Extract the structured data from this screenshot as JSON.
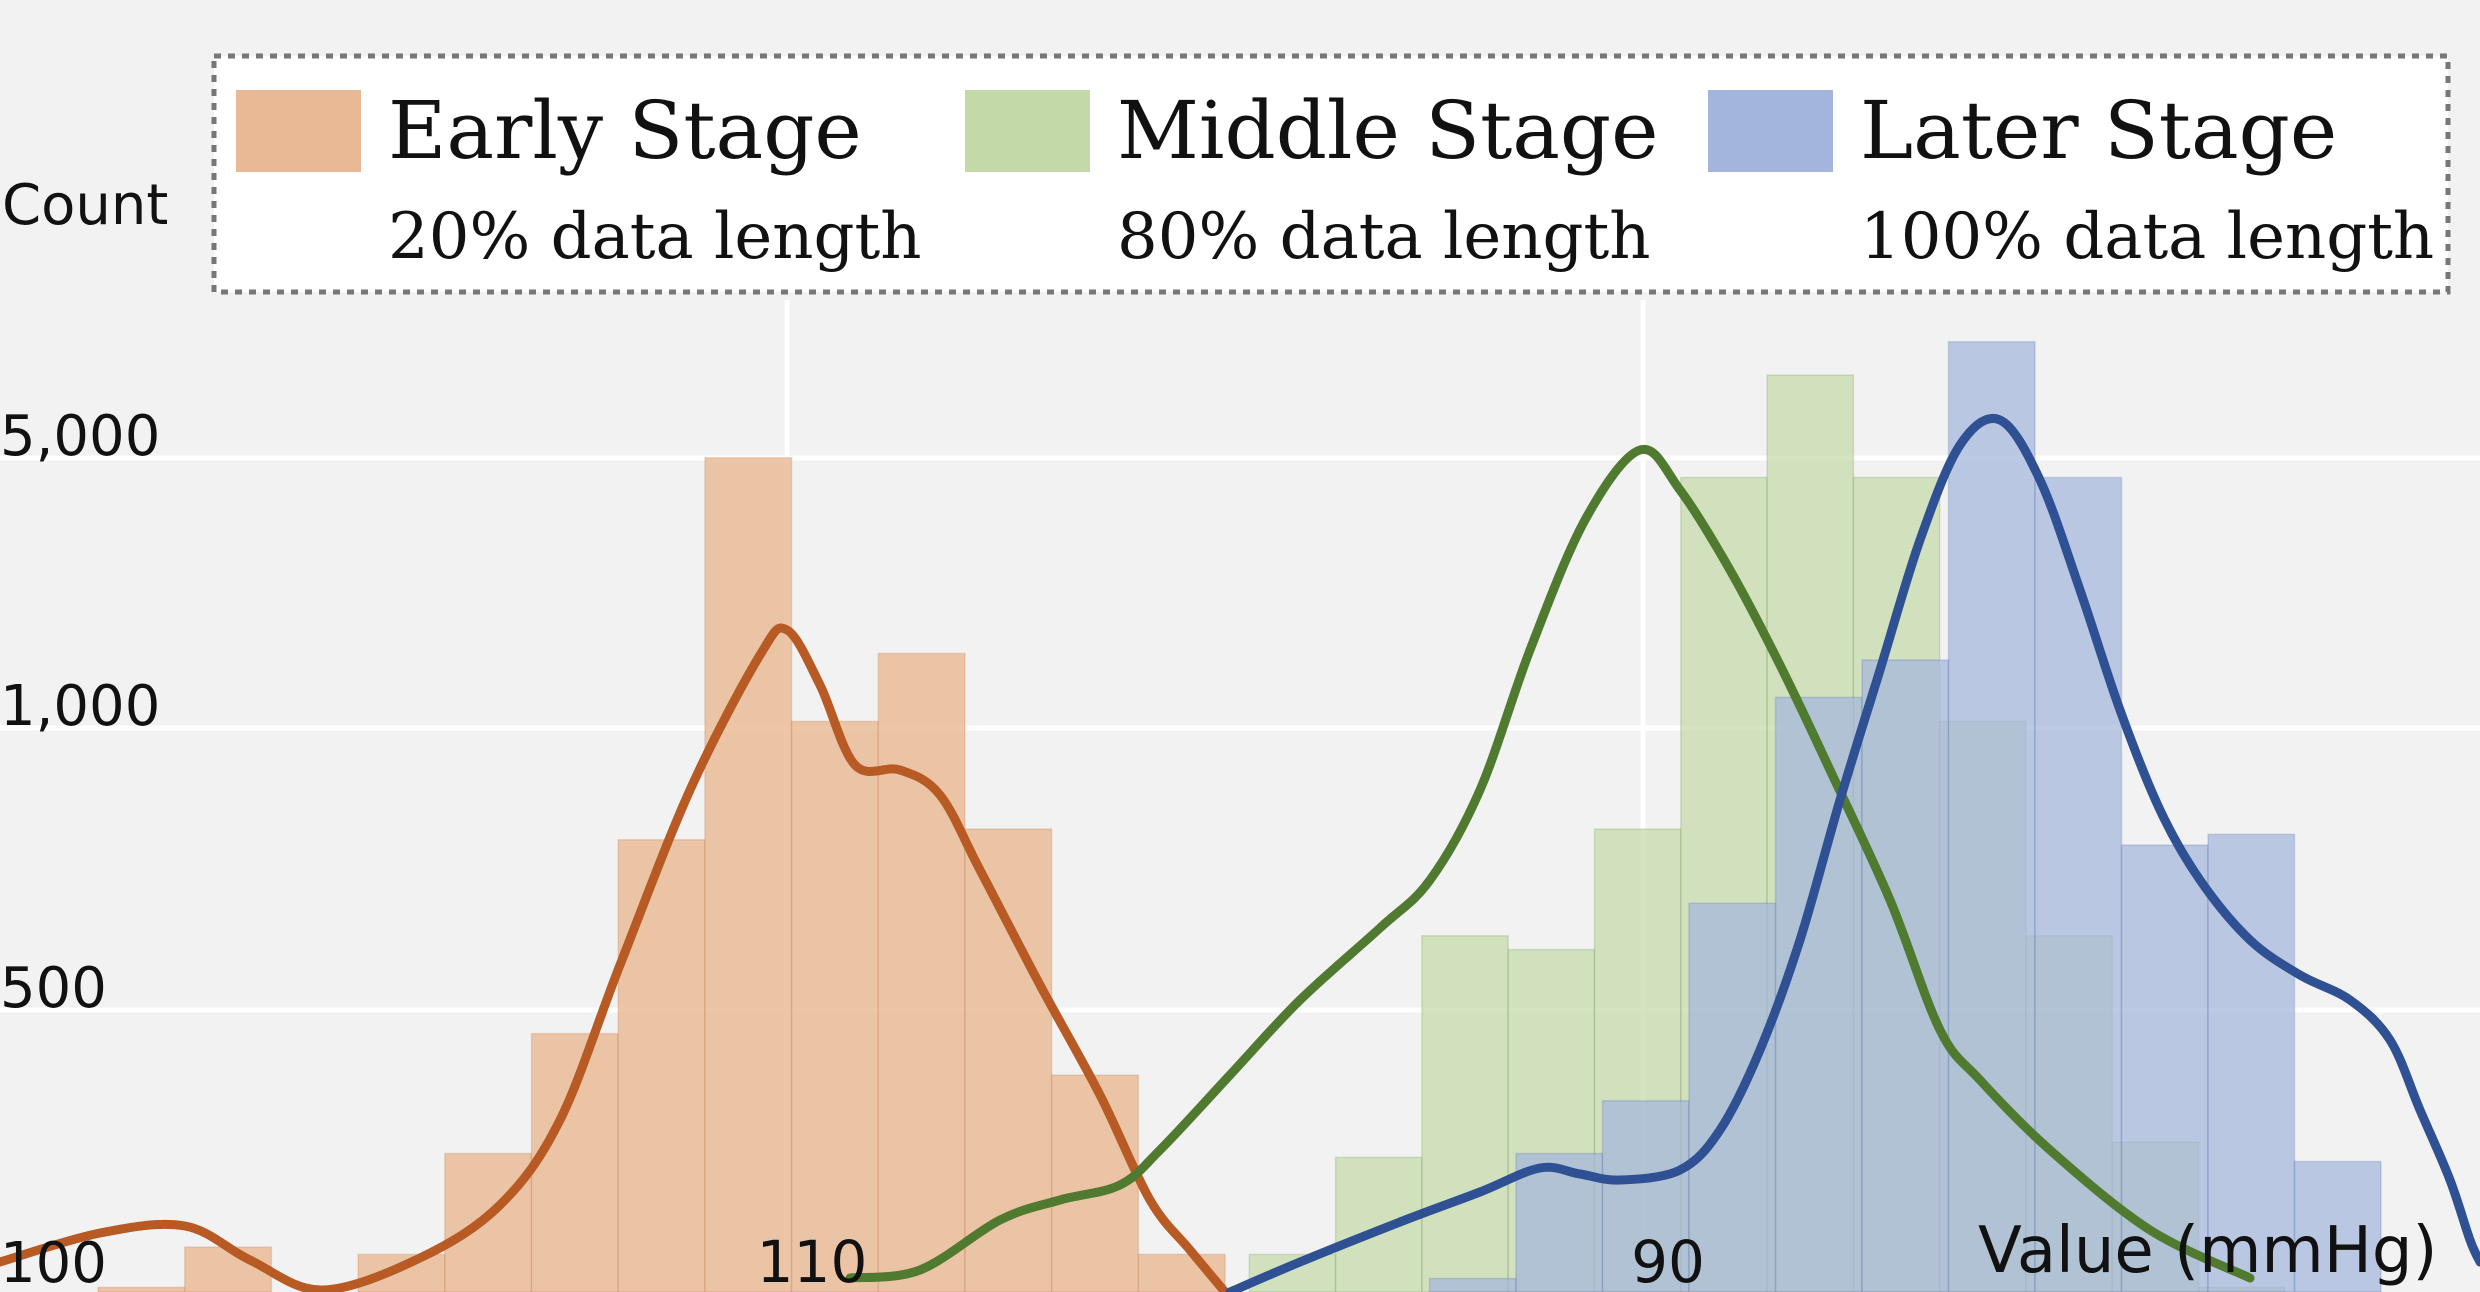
{
  "chart_data": {
    "type": "bar",
    "ylabel": "Count",
    "xlabel": "Value (mmHg)",
    "x_tick_labels": [
      "110",
      "90"
    ],
    "y_tick_labels": [
      "100",
      "500",
      "1,000",
      "5,000"
    ],
    "grid": true,
    "legend_placement": "top",
    "series": [
      {
        "name": "Early Stage",
        "subtitle": "20% data length",
        "color": "#e9b995",
        "kde_color": "#b85a24",
        "bins": [
          "<115.6",
          "114.7",
          "113.8",
          "112.9",
          "112.0",
          "111.1",
          "110.2",
          "109.3",
          "108.4",
          "107.5",
          "106.6",
          "105.7",
          "104.8",
          "103.9",
          "103.0"
        ],
        "counts": [
          85,
          110,
          75,
          105,
          200,
          430,
          760,
          5010,
          1040,
          1560,
          780,
          330,
          105,
          75,
          52
        ]
      },
      {
        "name": "Middle Stage",
        "subtitle": "80% data length",
        "color": "#c4d9a8",
        "kde_color": "#4f7a2f",
        "bins": [
          "104.7",
          "103.8",
          "102.9",
          "102.0",
          "101.1",
          "100.2",
          "99.3",
          "98.4",
          "97.5",
          "96.6",
          "95.7",
          "94.8",
          "93.9",
          "93.0"
        ],
        "counts": [
          75,
          105,
          195,
          600,
          580,
          780,
          4450,
          8200,
          4450,
          1040,
          600,
          215,
          85,
          62
        ]
      },
      {
        "name": "Later Stage",
        "subtitle": "100% data length",
        "color": "#a3b5dc",
        "kde_color": "#2f5193",
        "bins": [
          "99.2",
          "98.3",
          "97.4",
          "96.5",
          "95.6",
          "94.7",
          "93.8",
          "92.9",
          "92.0",
          "91.1",
          "90.2",
          "89.3",
          "88.4"
        ],
        "counts": [
          70,
          90,
          200,
          280,
          650,
          1200,
          1500,
          10000,
          4450,
          750,
          770,
          190,
          72
        ]
      }
    ]
  }
}
